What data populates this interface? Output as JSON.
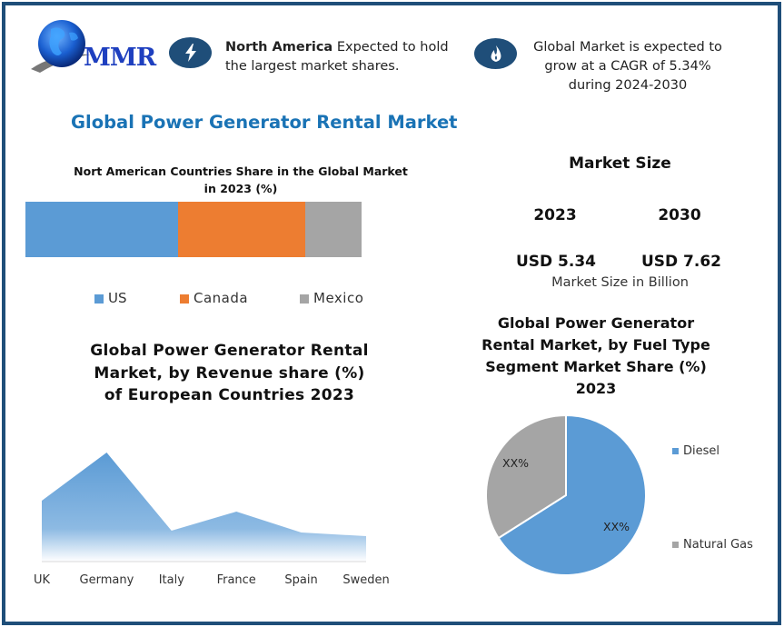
{
  "brand": {
    "logo_text": "MMR",
    "logo_icon": "globe-icon"
  },
  "highlights": [
    {
      "icon": "lightning-bolt-icon",
      "bold": "North America",
      "text": " Expected to hold the largest market shares."
    },
    {
      "icon": "flame-icon",
      "text": "Global Market is expected to grow at a CAGR of 5.34% during 2024-2030"
    }
  ],
  "main_title": "Global Power Generator Rental Market",
  "market_size": {
    "title": "Market Size",
    "years": [
      "2023",
      "2030"
    ],
    "values": [
      "USD 5.34",
      "USD 7.62"
    ],
    "unit_label": "Market Size in Billion"
  },
  "colors": {
    "frame": "#1f4e79",
    "accent_title": "#1a73b5",
    "us": "#5b9bd5",
    "canada": "#ed7d31",
    "mexico": "#a5a5a5",
    "diesel": "#5b9bd5",
    "natural_gas": "#a5a5a5"
  },
  "chart_data": [
    {
      "type": "bar",
      "orientation": "horizontal-stacked",
      "title": "Nort American Countries Share in the Global Market in 2023  (%)",
      "categories": [
        "2023"
      ],
      "series": [
        {
          "name": "US",
          "values": [
            45.4
          ]
        },
        {
          "name": "Canada",
          "values": [
            37.8
          ]
        },
        {
          "name": "Mexico",
          "values": [
            16.8
          ]
        }
      ],
      "legend": [
        "US",
        "Canada",
        "Mexico"
      ],
      "legend_position": "bottom",
      "xlabel": "",
      "ylabel": "",
      "grid": false
    },
    {
      "type": "area",
      "title": "Global Power Generator Rental Market, by Revenue share (%) of European Countries 2023",
      "categories": [
        "UK",
        "Germany",
        "Italy",
        "France",
        "Spain",
        "Sweden"
      ],
      "values": [
        67,
        120,
        34,
        55,
        32,
        28
      ],
      "value_note": "relative heights (no y-axis shown)",
      "xlabel": "",
      "ylabel": "",
      "grid": false
    },
    {
      "type": "pie",
      "title": "Global Power Generator Rental Market, by  Fuel Type  Segment Market Share (%) 2023",
      "categories": [
        "Diesel",
        "Natural Gas"
      ],
      "values": [
        66,
        34
      ],
      "data_labels": [
        "XX%",
        "XX%"
      ],
      "legend_position": "right"
    }
  ]
}
